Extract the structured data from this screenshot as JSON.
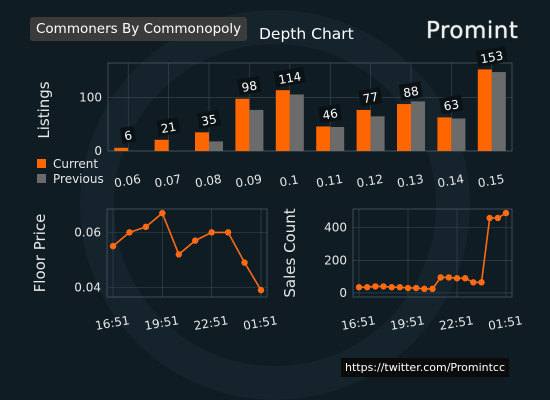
{
  "header": {
    "collection": "Commoners By Commonopoly",
    "brand": "Promint",
    "source": "https://twitter.com/Promintcc"
  },
  "colors": {
    "background": "#0f1c24",
    "current": "#ff6600",
    "previous": "#6b6b6b",
    "line": "#ff6a13",
    "text": "#e8e8e8"
  },
  "chart_data": [
    {
      "type": "bar",
      "title": "Depth Chart",
      "ylabel": "Listings",
      "xlabel": "",
      "categories": [
        "0.06",
        "0.07",
        "0.08",
        "0.09",
        "0.1",
        "0.11",
        "0.12",
        "0.13",
        "0.14",
        "0.15"
      ],
      "series": [
        {
          "name": "Current",
          "values": [
            6,
            21,
            35,
            98,
            114,
            46,
            77,
            88,
            63,
            153
          ]
        },
        {
          "name": "Previous",
          "values": [
            0,
            0,
            18,
            77,
            106,
            45,
            65,
            93,
            61,
            148
          ]
        }
      ],
      "ylim": [
        0,
        165
      ],
      "yticks": [
        0,
        100
      ],
      "grid": true,
      "legend": "bottom-left outside"
    },
    {
      "type": "line",
      "ylabel": "Floor Price",
      "x": [
        "16:51",
        "17:51",
        "18:51",
        "19:51",
        "20:51",
        "21:51",
        "22:51",
        "23:51",
        "00:51",
        "01:51"
      ],
      "xticklabels": [
        "16:51",
        "19:51",
        "22:51",
        "01:51"
      ],
      "values": [
        0.055,
        0.06,
        0.062,
        0.067,
        0.052,
        0.057,
        0.06,
        0.06,
        0.049,
        0.039
      ],
      "ylim": [
        0.0365,
        0.0685
      ],
      "yticks": [
        0.04,
        0.06
      ],
      "grid": true
    },
    {
      "type": "line",
      "ylabel": "Sales Count",
      "x": [
        "16:51",
        "17:21",
        "17:51",
        "18:21",
        "18:51",
        "19:21",
        "19:51",
        "20:21",
        "20:51",
        "21:21",
        "21:51",
        "22:21",
        "22:51",
        "23:21",
        "23:51",
        "00:21",
        "00:51",
        "01:21",
        "01:51"
      ],
      "xticklabels": [
        "16:51",
        "19:51",
        "22:51",
        "01:51"
      ],
      "values": [
        35,
        35,
        40,
        40,
        35,
        35,
        30,
        30,
        25,
        25,
        95,
        95,
        90,
        90,
        65,
        65,
        460,
        460,
        490
      ],
      "ylim": [
        -25,
        515
      ],
      "yticks": [
        0,
        200,
        400
      ],
      "grid": true
    }
  ]
}
